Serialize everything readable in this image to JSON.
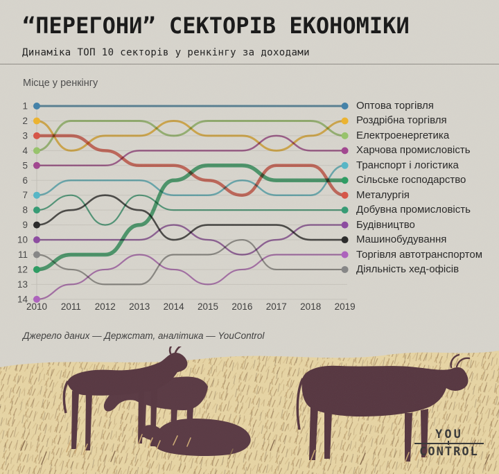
{
  "header": {
    "title": "“ПЕРЕГОНИ” СЕКТОРІВ ЕКОНОМІКИ",
    "subtitle": "Динаміка ТОП 10 секторів у ренкінгу за доходами"
  },
  "chart_data": {
    "type": "line",
    "variant": "bump-chart",
    "title": "Місце у ренкінгу",
    "ylabel": "Місце у ренкінгу",
    "x": [
      2010,
      2011,
      2012,
      2013,
      2014,
      2015,
      2016,
      2017,
      2018,
      2019
    ],
    "yticks": [
      1,
      2,
      3,
      4,
      5,
      6,
      7,
      8,
      9,
      10,
      11,
      12,
      13,
      14
    ],
    "ylim": [
      1,
      14
    ],
    "y_axis_inverted": true,
    "grid": "horizontal",
    "legend_position": "right",
    "series": [
      {
        "name": "Оптова торгівля",
        "color": "#4381a8",
        "width": 3.0,
        "ranks": [
          1,
          1,
          1,
          1,
          1,
          1,
          1,
          1,
          1,
          1
        ]
      },
      {
        "name": "Роздрібна торгівля",
        "color": "#ecb32f",
        "width": 3.0,
        "ranks": [
          2,
          4,
          3,
          3,
          2,
          3,
          3,
          4,
          3,
          2
        ]
      },
      {
        "name": "Електроенергетика",
        "color": "#97c36b",
        "width": 3.0,
        "ranks": [
          4,
          2,
          2,
          2,
          3,
          2,
          2,
          2,
          2,
          3
        ]
      },
      {
        "name": "Харчова промисловість",
        "color": "#a1468f",
        "width": 2.5,
        "ranks": [
          5,
          5,
          5,
          4,
          4,
          4,
          4,
          3,
          4,
          4
        ]
      },
      {
        "name": "Транспорт і логістика",
        "color": "#56b6c6",
        "width": 2.5,
        "ranks": [
          7,
          6,
          6,
          6,
          7,
          7,
          6,
          7,
          7,
          5
        ]
      },
      {
        "name": "Сільське господарство",
        "color": "#2d9c62",
        "width": 5.5,
        "ranks": [
          12,
          11,
          11,
          9,
          6,
          5,
          5,
          6,
          6,
          6
        ]
      },
      {
        "name": "Металургія",
        "color": "#d65547",
        "width": 4.5,
        "ranks": [
          3,
          3,
          4,
          5,
          5,
          6,
          7,
          5,
          5,
          7
        ]
      },
      {
        "name": "Добувна промисловість",
        "color": "#359b74",
        "width": 2.2,
        "ranks": [
          8,
          7,
          9,
          7,
          8,
          8,
          8,
          8,
          8,
          8
        ]
      },
      {
        "name": "Будівництво",
        "color": "#8c4ba0",
        "width": 2.4,
        "ranks": [
          10,
          10,
          10,
          10,
          9,
          10,
          11,
          10,
          9,
          9
        ]
      },
      {
        "name": "Машинобудування",
        "color": "#2a2a2a",
        "width": 2.6,
        "ranks": [
          9,
          8,
          7,
          8,
          10,
          9,
          9,
          9,
          10,
          10
        ]
      },
      {
        "name": "Торгівля автотранспортом",
        "color": "#ad62bd",
        "width": 2.2,
        "ranks": [
          14,
          13,
          12,
          11,
          12,
          13,
          12,
          11,
          11,
          11
        ]
      },
      {
        "name": "Діяльність хед-офісів",
        "color": "#868686",
        "width": 2.2,
        "ranks": [
          11,
          12,
          13,
          13,
          11,
          11,
          10,
          12,
          12,
          12
        ]
      }
    ]
  },
  "footer": {
    "source": "Джерело даних — Держстат, аналітика — YouControl"
  },
  "logo": {
    "line1": "YOU",
    "control_pre": "CON",
    "control_t": "T",
    "control_post": "ROL"
  }
}
